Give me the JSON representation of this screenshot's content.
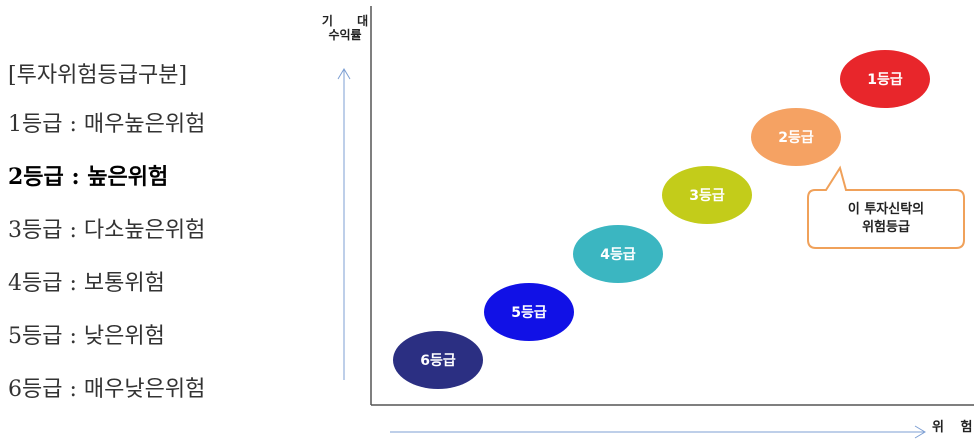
{
  "legend": {
    "title": "[투자위험등급구분]",
    "items": [
      {
        "text": "1등급 : 매우높은위험",
        "current": false
      },
      {
        "text": "2등급 : 높은위험",
        "current": true
      },
      {
        "text": "3등급 : 다소높은위험",
        "current": false
      },
      {
        "text": "4등급 : 보통위험",
        "current": false
      },
      {
        "text": "5등급 : 낮은위험",
        "current": false
      },
      {
        "text": "6등급 : 매우낮은위험",
        "current": false
      }
    ]
  },
  "diagram": {
    "y_label_line1": "기 대",
    "y_label_line2": "수익률",
    "x_label": "위 험",
    "grades": [
      {
        "label": "1등급",
        "color": "#e8262b"
      },
      {
        "label": "2등급",
        "color": "#f5a263"
      },
      {
        "label": "3등급",
        "color": "#c3cc1a"
      },
      {
        "label": "4등급",
        "color": "#3bb6c1"
      },
      {
        "label": "5등급",
        "color": "#1111e6"
      },
      {
        "label": "6등급",
        "color": "#2b2f82"
      }
    ],
    "callout": {
      "text": "이 투자신탁의\n위험등급",
      "border_color": "#f0a15a",
      "points_to": "2등급"
    }
  }
}
